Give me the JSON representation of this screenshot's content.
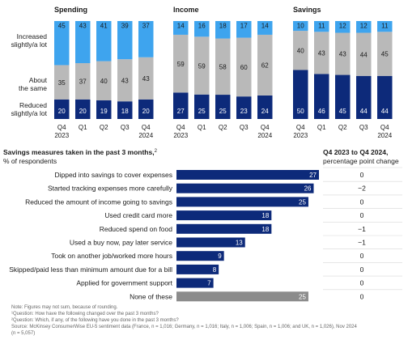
{
  "chart_data": [
    {
      "type": "bar",
      "stacked": true,
      "title": "Spending",
      "categories": [
        "Q4 2023",
        "Q1",
        "Q2",
        "Q3",
        "Q4 2024"
      ],
      "tick_labels": [
        [
          "Q4",
          "2023"
        ],
        [
          "Q1"
        ],
        [
          "Q2"
        ],
        [
          "Q3"
        ],
        [
          "Q4",
          "2024"
        ]
      ],
      "row_labels": [
        [
          "Increased",
          "slightly/a lot"
        ],
        [
          "About",
          "the same"
        ],
        [
          "Reduced",
          "slightly/a lot"
        ]
      ],
      "series": [
        {
          "name": "Reduced slightly/a lot",
          "values": [
            20,
            20,
            19,
            18,
            20
          ]
        },
        {
          "name": "About the same",
          "values": [
            35,
            37,
            40,
            43,
            43
          ]
        },
        {
          "name": "Increased slightly/a lot",
          "values": [
            45,
            43,
            41,
            39,
            37
          ]
        }
      ]
    },
    {
      "type": "bar",
      "stacked": true,
      "title": "Income",
      "categories": [
        "Q4 2023",
        "Q1",
        "Q2",
        "Q3",
        "Q4 2024"
      ],
      "tick_labels": [
        [
          "Q4",
          "2023"
        ],
        [
          "Q1"
        ],
        [
          "Q2"
        ],
        [
          "Q3"
        ],
        [
          "Q4",
          "2024"
        ]
      ],
      "series": [
        {
          "name": "Reduced slightly/a lot",
          "values": [
            27,
            25,
            25,
            23,
            24
          ]
        },
        {
          "name": "About the same",
          "values": [
            59,
            59,
            58,
            60,
            62
          ]
        },
        {
          "name": "Increased slightly/a lot",
          "values": [
            14,
            16,
            18,
            17,
            14
          ]
        }
      ]
    },
    {
      "type": "bar",
      "stacked": true,
      "title": "Savings",
      "categories": [
        "Q4 2023",
        "Q1",
        "Q2",
        "Q3",
        "Q4 2024"
      ],
      "tick_labels": [
        [
          "Q4",
          "2023"
        ],
        [
          "Q1"
        ],
        [
          "Q2"
        ],
        [
          "Q3"
        ],
        [
          "Q4",
          "2024"
        ]
      ],
      "series": [
        {
          "name": "Reduced slightly/a lot",
          "values": [
            50,
            46,
            45,
            44,
            44
          ]
        },
        {
          "name": "About the same",
          "values": [
            40,
            43,
            43,
            44,
            45
          ]
        },
        {
          "name": "Increased slightly/a lot",
          "values": [
            10,
            11,
            12,
            12,
            11
          ]
        }
      ]
    },
    {
      "type": "bar",
      "orientation": "horizontal",
      "title": "Savings measures taken in the past 3 months,",
      "title_sup": "2",
      "subtitle": "% of respondents",
      "change_header": [
        "Q4 2023 to Q4 2024,",
        "percentage point change"
      ],
      "categories": [
        "Dipped into savings to cover expenses",
        "Started tracking expenses more carefully",
        "Reduced the amount of income going to savings",
        "Used credit card more",
        "Reduced spend on food",
        "Used a buy now, pay later service",
        "Took on another job/worked more hours",
        "Skipped/paid less than minimum amount due for a bill",
        "Applied for government support",
        "None of these"
      ],
      "values": [
        27,
        26,
        25,
        18,
        18,
        13,
        9,
        8,
        7,
        25
      ],
      "changes": [
        "0",
        "−2",
        "0",
        "0",
        "−1",
        "−1",
        "0",
        "0",
        "0",
        "0"
      ]
    }
  ],
  "colors": {
    "navy": "#0d2a7a",
    "gray": "#b9b9b9",
    "sky": "#3ea4ee",
    "none_bar": "#8c8c8c",
    "text": "#1a1a1a",
    "note": "#666666"
  },
  "notes": [
    "Note: Figures may not sum, because of rounding.",
    "¹Question: How have the following changed over the past 3 months?",
    "²Question: Which, if any, of the following have you done in the past 3 months?",
    "Source: McKinsey ConsumerWise EU-5 sentiment data (France, n = 1,016; Germany, n = 1,016; Italy, n = 1,006; Spain, n = 1,006; and UK, n = 1,026), Nov 2024",
    "(n = 5,057)"
  ]
}
